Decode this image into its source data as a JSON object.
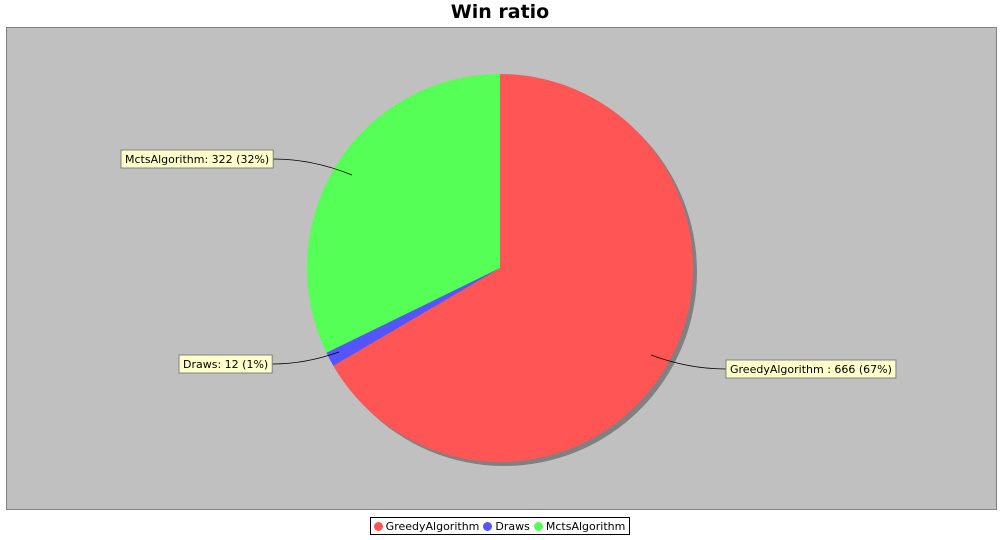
{
  "chart_data": {
    "type": "pie",
    "title": "Win ratio",
    "slices": [
      {
        "name": "GreedyAlgorithm",
        "value": 666,
        "label": "GreedyAlgorithm : 666 (67%)",
        "color": "#ff5555"
      },
      {
        "name": "Draws",
        "value": 12,
        "label": "Draws: 12 (1%)",
        "color": "#5555ff"
      },
      {
        "name": "MctsAlgorithm",
        "value": 322,
        "label": "MctsAlgorithm: 322 (32%)",
        "color": "#55ff55"
      }
    ],
    "legend": {
      "position": "bottom",
      "entries": [
        "GreedyAlgorithm",
        "Draws",
        "MctsAlgorithm"
      ]
    }
  },
  "colors": {
    "plot_background": "#c0c0c0",
    "label_background": "#ffffcc"
  }
}
